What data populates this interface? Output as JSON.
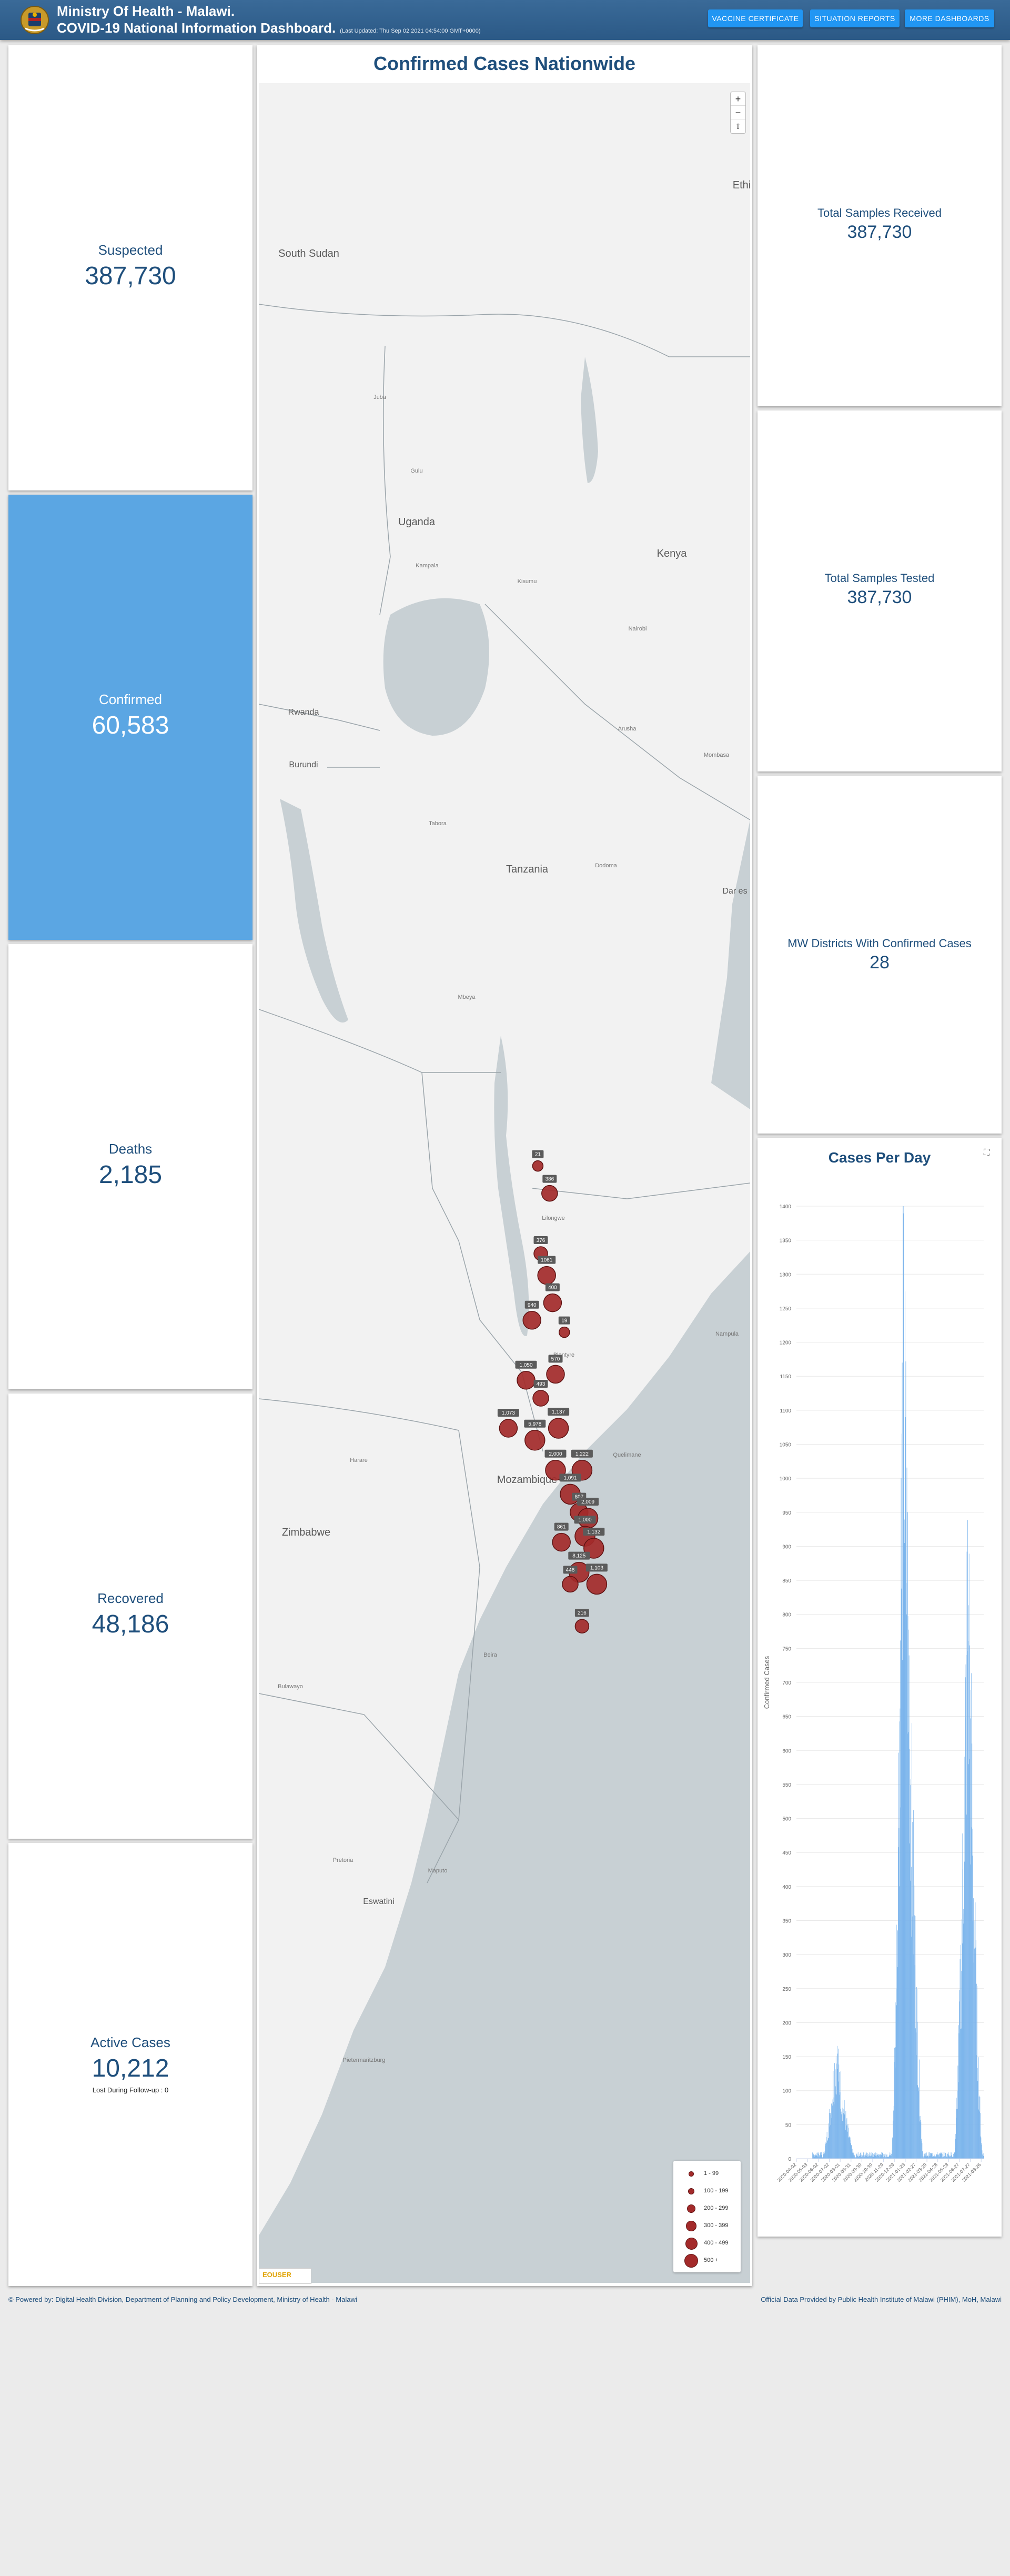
{
  "header": {
    "title_line1": "Ministry Of Health - Malawi.",
    "title_line2": "COVID-19 National Information Dashboard.",
    "last_updated": "(Last Updated: Thu Sep 02 2021 04:54:00 GMT+0000)",
    "buttons": {
      "vaccine": "VACCINE CERTIFICATE",
      "situation": "SITUATION REPORTS",
      "more": "MORE DASHBOARDS"
    }
  },
  "stats": {
    "suspected": {
      "label": "Suspected",
      "value": "387,730"
    },
    "confirmed": {
      "label": "Confirmed",
      "value": "60,583"
    },
    "deaths": {
      "label": "Deaths",
      "value": "2,185"
    },
    "recovered": {
      "label": "Recovered",
      "value": "48,186"
    },
    "active": {
      "label": "Active Cases",
      "value": "10,212",
      "sub": "Lost During Follow-up : 0"
    },
    "samples_received": {
      "label": "Total Samples Received",
      "value": "387,730"
    },
    "samples_tested": {
      "label": "Total Samples Tested",
      "value": "387,730"
    },
    "districts": {
      "label": "MW Districts With Confirmed Cases",
      "value": "28"
    }
  },
  "map": {
    "title": "Confirmed Cases Nationwide",
    "zoom": {
      "in": "+",
      "out": "−",
      "reset": "⇧"
    },
    "countries": [
      "South Sudan",
      "Ethi",
      "Uganda",
      "Kenya",
      "Rwanda",
      "Burundi",
      "Tanzania",
      "Dar es",
      "Mozambique",
      "Zimbabwe",
      "Eswatini"
    ],
    "cities": [
      "Juba",
      "Gulu",
      "Kampala",
      "Kisumu",
      "Nairobi",
      "Mombasa",
      "Arusha",
      "Dodoma",
      "Tabora",
      "Mbeya",
      "Lilongwe",
      "Blantyre",
      "Harare",
      "Nampula",
      "Quelimane",
      "Beira",
      "Maputo",
      "Pretoria",
      "Bulawayo",
      "Pietermaritzburg"
    ],
    "markers": [
      {
        "label": "21",
        "lat": -9.4,
        "lon": 33.9,
        "size": 1
      },
      {
        "label": "386",
        "lat": -9.9,
        "lon": 34.3,
        "size": 3
      },
      {
        "label": "376",
        "lat": -11.0,
        "lon": 34.0,
        "size": 2
      },
      {
        "label": "1061",
        "lat": -11.4,
        "lon": 34.2,
        "size": 4
      },
      {
        "label": "400",
        "lat": -11.9,
        "lon": 34.4,
        "size": 4
      },
      {
        "label": "940",
        "lat": -12.2,
        "lon": 33.7,
        "size": 4
      },
      {
        "label": "19",
        "lat": -12.4,
        "lon": 34.8,
        "size": 1
      },
      {
        "label": "1,050",
        "lat": -13.2,
        "lon": 33.5,
        "size": 4
      },
      {
        "label": "493",
        "lat": -13.5,
        "lon": 34.0,
        "size": 3
      },
      {
        "label": "570",
        "lat": -13.1,
        "lon": 34.5,
        "size": 4
      },
      {
        "label": "1,073",
        "lat": -14.0,
        "lon": 32.9,
        "size": 4
      },
      {
        "label": "5,978",
        "lat": -14.2,
        "lon": 33.8,
        "size": 5
      },
      {
        "label": "1,137",
        "lat": -14.0,
        "lon": 34.6,
        "size": 5
      },
      {
        "label": "2,000",
        "lat": -14.7,
        "lon": 34.5,
        "size": 5
      },
      {
        "label": "1,222",
        "lat": -14.7,
        "lon": 35.4,
        "size": 5
      },
      {
        "label": "1,091",
        "lat": -15.1,
        "lon": 35.0,
        "size": 5
      },
      {
        "label": "807",
        "lat": -15.4,
        "lon": 35.3,
        "size": 4
      },
      {
        "label": "2,009",
        "lat": -15.5,
        "lon": 35.6,
        "size": 5
      },
      {
        "label": "1,000",
        "lat": -15.8,
        "lon": 35.5,
        "size": 5
      },
      {
        "label": "861",
        "lat": -15.9,
        "lon": 34.7,
        "size": 4
      },
      {
        "label": "1,132",
        "lat": -16.0,
        "lon": 35.8,
        "size": 5
      },
      {
        "label": "8,125",
        "lat": -16.4,
        "lon": 35.3,
        "size": 5
      },
      {
        "label": "1,103",
        "lat": -16.6,
        "lon": 35.9,
        "size": 5
      },
      {
        "label": "446",
        "lat": -16.6,
        "lon": 35.0,
        "size": 3
      },
      {
        "label": "216",
        "lat": -17.3,
        "lon": 35.4,
        "size": 2
      }
    ],
    "legend": [
      {
        "label": "1 - 99",
        "size": 1
      },
      {
        "label": "100 - 199",
        "size": 2
      },
      {
        "label": "200 - 299",
        "size": 3
      },
      {
        "label": "300 - 399",
        "size": 4
      },
      {
        "label": "400 - 499",
        "size": 5
      },
      {
        "label": "500 +",
        "size": 6
      }
    ],
    "attribution": "EOUSER"
  },
  "chart_data": {
    "type": "bar",
    "title": "Cases Per Day",
    "ylabel": "Confirmed Cases",
    "xlabel": "",
    "ylim": [
      0,
      1400
    ],
    "yticks": [
      0,
      50,
      100,
      150,
      200,
      250,
      300,
      350,
      400,
      450,
      500,
      550,
      600,
      650,
      700,
      750,
      800,
      850,
      900,
      950,
      1000,
      1050,
      1100,
      1150,
      1200,
      1250,
      1300,
      1350,
      1400
    ],
    "xticks": [
      "2020-04-02",
      "2020-05-03",
      "2020-06-02",
      "2020-07-02",
      "2020-08-01",
      "2020-08-31",
      "2020-09-30",
      "2020-10-30",
      "2020-11-29",
      "2020-12-29",
      "2021-01-28",
      "2021-02-27",
      "2021-03-29",
      "2021-04-28",
      "2021-05-28",
      "2021-06-27",
      "2021-07-27",
      "2021-08-26"
    ],
    "waves": [
      {
        "start": "2020-06-10",
        "peak_date": "2020-07-20",
        "end": "2020-09-15",
        "peak": 180
      },
      {
        "start": "2020-12-20",
        "peak_date": "2021-01-22",
        "end": "2021-03-20",
        "peak": 1350
      },
      {
        "start": "2021-06-10",
        "peak_date": "2021-07-20",
        "end": "2021-08-31",
        "peak": 950
      }
    ],
    "grid": true,
    "legend": "none"
  },
  "footer": {
    "left": "© Powered by: Digital Health Division, Department of Planning and Policy Development, Ministry of Health - Malawi",
    "right": "Official Data Provided by Public Health Institute of Malawi (PHIM), MoH, Malawi"
  }
}
